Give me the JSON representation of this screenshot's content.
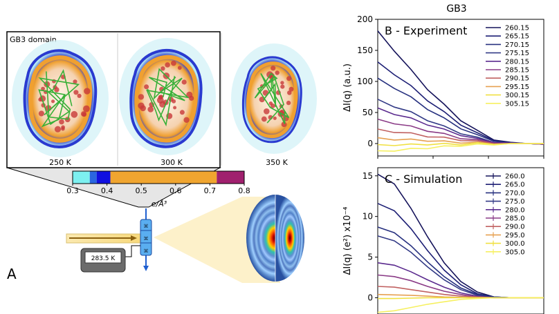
{
  "panel_a": {
    "label": "A",
    "box_title": "GB3 domain",
    "temps": [
      "250 K",
      "300 K",
      "350 K"
    ],
    "colorbar": {
      "ticks": [
        "0.3",
        "0.4",
        "0.5",
        "0.6",
        "0.7",
        "0.8"
      ],
      "label": "e/Å³",
      "segments": [
        {
          "from": 0.3,
          "to": 0.35,
          "color": "#7df0f0"
        },
        {
          "from": 0.35,
          "to": 0.37,
          "color": "#2a66e0"
        },
        {
          "from": 0.37,
          "to": 0.41,
          "color": "#1010e0"
        },
        {
          "from": 0.41,
          "to": 0.72,
          "color": "#f0a530"
        },
        {
          "from": 0.72,
          "to": 0.8,
          "color": "#a0206e"
        }
      ]
    },
    "thermometer": "283.5 K"
  },
  "right_title": "GB3",
  "colors": [
    "#14125a",
    "#1c1e74",
    "#26307f",
    "#323a86",
    "#5a2a8e",
    "#8a3a86",
    "#c06060",
    "#e6a050",
    "#f0e040",
    "#f6f060"
  ],
  "chart_data": [
    {
      "type": "line",
      "title": "B - Experiment",
      "ylabel": "ΔI(q) (a.u.)",
      "ylim": [
        -20,
        200
      ],
      "yticks": [
        "0",
        "50",
        "100",
        "150",
        "200"
      ],
      "xlim": [
        0,
        3
      ],
      "legend_location": "top-right",
      "series": [
        {
          "name": "260.15",
          "values": [
            180,
            150,
            118,
            88,
            62,
            38,
            20,
            7,
            2,
            0,
            -1
          ]
        },
        {
          "name": "265.15",
          "values": [
            130,
            112,
            92,
            70,
            50,
            31,
            16,
            6,
            1,
            0,
            -1
          ]
        },
        {
          "name": "270.15",
          "values": [
            104,
            90,
            74,
            56,
            40,
            25,
            13,
            5,
            1,
            0,
            -1
          ]
        },
        {
          "name": "275.15",
          "values": [
            70,
            60,
            50,
            38,
            27,
            17,
            9,
            3,
            1,
            0,
            -1
          ]
        },
        {
          "name": "280.15",
          "values": [
            56,
            48,
            40,
            31,
            22,
            14,
            7,
            3,
            1,
            0,
            -1
          ]
        },
        {
          "name": "285.15",
          "values": [
            38,
            33,
            27,
            21,
            15,
            9,
            5,
            2,
            0,
            0,
            -1
          ]
        },
        {
          "name": "290.15",
          "values": [
            22,
            19,
            16,
            12,
            9,
            6,
            3,
            1,
            0,
            0,
            0
          ]
        },
        {
          "name": "295.15",
          "values": [
            8,
            7,
            6,
            5,
            3,
            2,
            1,
            0,
            0,
            0,
            0
          ]
        },
        {
          "name": "300.15",
          "values": [
            -3,
            -2,
            -2,
            -1,
            -1,
            -1,
            0,
            0,
            0,
            0,
            0
          ]
        },
        {
          "name": "305.15",
          "values": [
            -13,
            -11,
            -9,
            -7,
            -5,
            -3,
            -2,
            -1,
            0,
            0,
            0
          ]
        }
      ]
    },
    {
      "type": "line",
      "title": "C - Simulation",
      "ylabel": "ΔI(q) (e²) x10⁻⁴",
      "ylim": [
        -2,
        16
      ],
      "yticks": [
        "0",
        "5",
        "10",
        "15"
      ],
      "xlim": [
        0,
        3
      ],
      "legend_location": "top-right",
      "series": [
        {
          "name": "260.0",
          "values": [
            15.2,
            14.0,
            11.0,
            7.5,
            4.3,
            2.0,
            0.7,
            0.1,
            0.0,
            0.0,
            0.0
          ]
        },
        {
          "name": "265.0",
          "values": [
            11.6,
            10.7,
            8.5,
            5.8,
            3.4,
            1.6,
            0.5,
            0.1,
            0.0,
            0.0,
            0.0
          ]
        },
        {
          "name": "270.0",
          "values": [
            8.7,
            8.0,
            6.4,
            4.4,
            2.6,
            1.2,
            0.4,
            0.1,
            0.0,
            0.0,
            0.0
          ]
        },
        {
          "name": "275.0",
          "values": [
            7.6,
            7.0,
            5.6,
            3.8,
            2.2,
            1.0,
            0.3,
            0.0,
            0.0,
            0.0,
            0.0
          ]
        },
        {
          "name": "280.0",
          "values": [
            4.3,
            4.0,
            3.2,
            2.2,
            1.3,
            0.6,
            0.2,
            0.0,
            0.0,
            0.0,
            0.0
          ]
        },
        {
          "name": "285.0",
          "values": [
            2.8,
            2.6,
            2.1,
            1.4,
            0.8,
            0.4,
            0.1,
            0.0,
            0.0,
            0.0,
            0.0
          ]
        },
        {
          "name": "290.0",
          "values": [
            1.4,
            1.3,
            1.0,
            0.7,
            0.4,
            0.2,
            0.1,
            0.0,
            0.0,
            0.0,
            0.0
          ]
        },
        {
          "name": "295.0",
          "values": [
            0.4,
            0.35,
            0.3,
            0.2,
            0.1,
            0.05,
            0.0,
            0.0,
            0.0,
            0.0,
            0.0
          ]
        },
        {
          "name": "300.0",
          "values": [
            -0.1,
            -0.1,
            -0.05,
            0.0,
            0.0,
            0.0,
            0.0,
            0.0,
            0.0,
            0.0,
            0.0
          ]
        },
        {
          "name": "305.0",
          "values": [
            -1.8,
            -1.6,
            -1.2,
            -0.8,
            -0.5,
            -0.2,
            -0.1,
            0.0,
            0.0,
            0.0,
            0.0
          ]
        }
      ]
    }
  ]
}
